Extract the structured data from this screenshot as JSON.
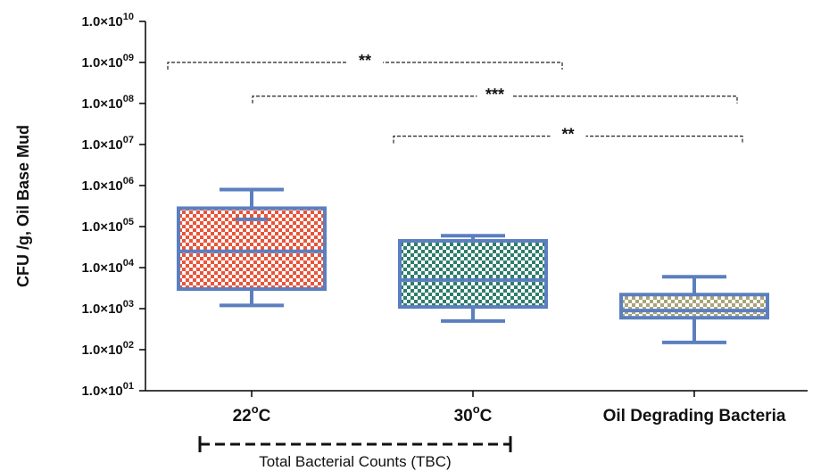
{
  "chart_data": {
    "type": "box",
    "ylabel": "CFU /g, Oil Base Mud",
    "yscale": "log",
    "ylim": [
      10,
      10000000000
    ],
    "ytick_labels": [
      {
        "mant": "1.0×10",
        "exp": "10"
      },
      {
        "mant": "1.0×10",
        "exp": "09"
      },
      {
        "mant": "1.0×10",
        "exp": "08"
      },
      {
        "mant": "1.0×10",
        "exp": "07"
      },
      {
        "mant": "1.0×10",
        "exp": "06"
      },
      {
        "mant": "1.0×10",
        "exp": "05"
      },
      {
        "mant": "1.0×10",
        "exp": "04"
      },
      {
        "mant": "1.0×10",
        "exp": "03"
      },
      {
        "mant": "1.0×10",
        "exp": "02"
      },
      {
        "mant": "1.0×10",
        "exp": "01"
      }
    ],
    "categories": [
      {
        "main": "22",
        "sup": "o",
        "tail": "C"
      },
      {
        "main": "30",
        "sup": "o",
        "tail": "C"
      },
      {
        "main": "Oil Degrading Bacteria",
        "sup": "",
        "tail": ""
      }
    ],
    "boxes": [
      {
        "min": 1200,
        "q1": 3000,
        "median": 25000,
        "q3": 280000,
        "max": 800000,
        "mean": 150000,
        "color": "#e8553a"
      },
      {
        "min": 500,
        "q1": 1100,
        "median": 5000,
        "q3": 45000,
        "max": 60000,
        "mean": null,
        "color": "#2e7d6b"
      },
      {
        "min": 150,
        "q1": 600,
        "median": 900,
        "q3": 2200,
        "max": 6000,
        "mean": null,
        "color": "#a9a47a"
      }
    ],
    "significance": [
      {
        "from": 0,
        "to": 1,
        "label": "**",
        "y": 1000000000
      },
      {
        "from": 0,
        "to": 2,
        "label": "***",
        "y": 150000000
      },
      {
        "from": 1,
        "to": 2,
        "label": "**",
        "y": 16000000
      }
    ],
    "group_label": "Total Bacterial Counts (TBC)",
    "grid": false,
    "box_edge_color": "#5b7fbf"
  }
}
